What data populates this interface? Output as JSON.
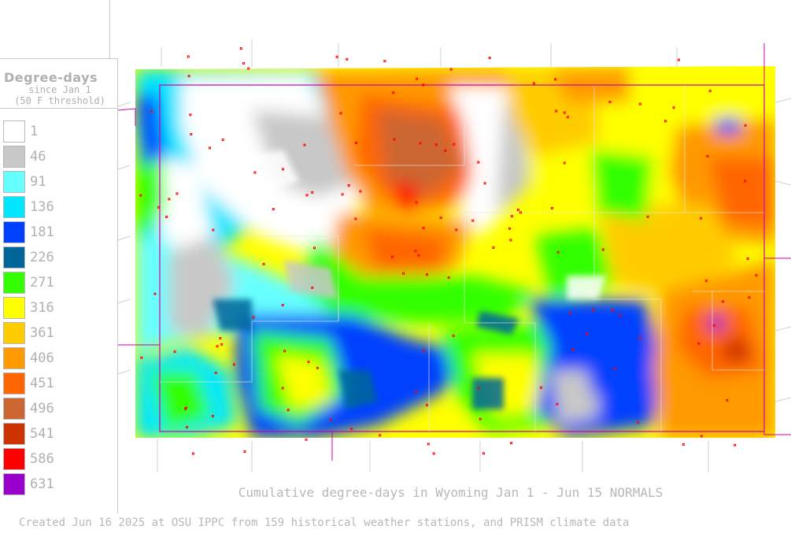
{
  "legend": {
    "title": "Degree-days",
    "subtitle1": "since Jan 1",
    "subtitle2": "(50 F threshold)",
    "items": [
      {
        "label": "1",
        "color": "#ffffff"
      },
      {
        "label": "46",
        "color": "#c8c8c8"
      },
      {
        "label": "91",
        "color": "#66ffff"
      },
      {
        "label": "136",
        "color": "#00e6ff"
      },
      {
        "label": "181",
        "color": "#0040ff"
      },
      {
        "label": "226",
        "color": "#006699"
      },
      {
        "label": "271",
        "color": "#33ff00"
      },
      {
        "label": "316",
        "color": "#ffff00"
      },
      {
        "label": "361",
        "color": "#ffcc00"
      },
      {
        "label": "406",
        "color": "#ff9900"
      },
      {
        "label": "451",
        "color": "#ff6600"
      },
      {
        "label": "496",
        "color": "#cc6633"
      },
      {
        "label": "541",
        "color": "#cc3300"
      },
      {
        "label": "586",
        "color": "#ff0000"
      },
      {
        "label": "631",
        "color": "#9900cc"
      }
    ]
  },
  "caption": "Cumulative degree-days in Wyoming  Jan 1 - Jun 15 NORMALS",
  "credit": "Created Jun 16 2025 at OSU IPPC from 159 historical weather stations, and PRISM climate data"
}
